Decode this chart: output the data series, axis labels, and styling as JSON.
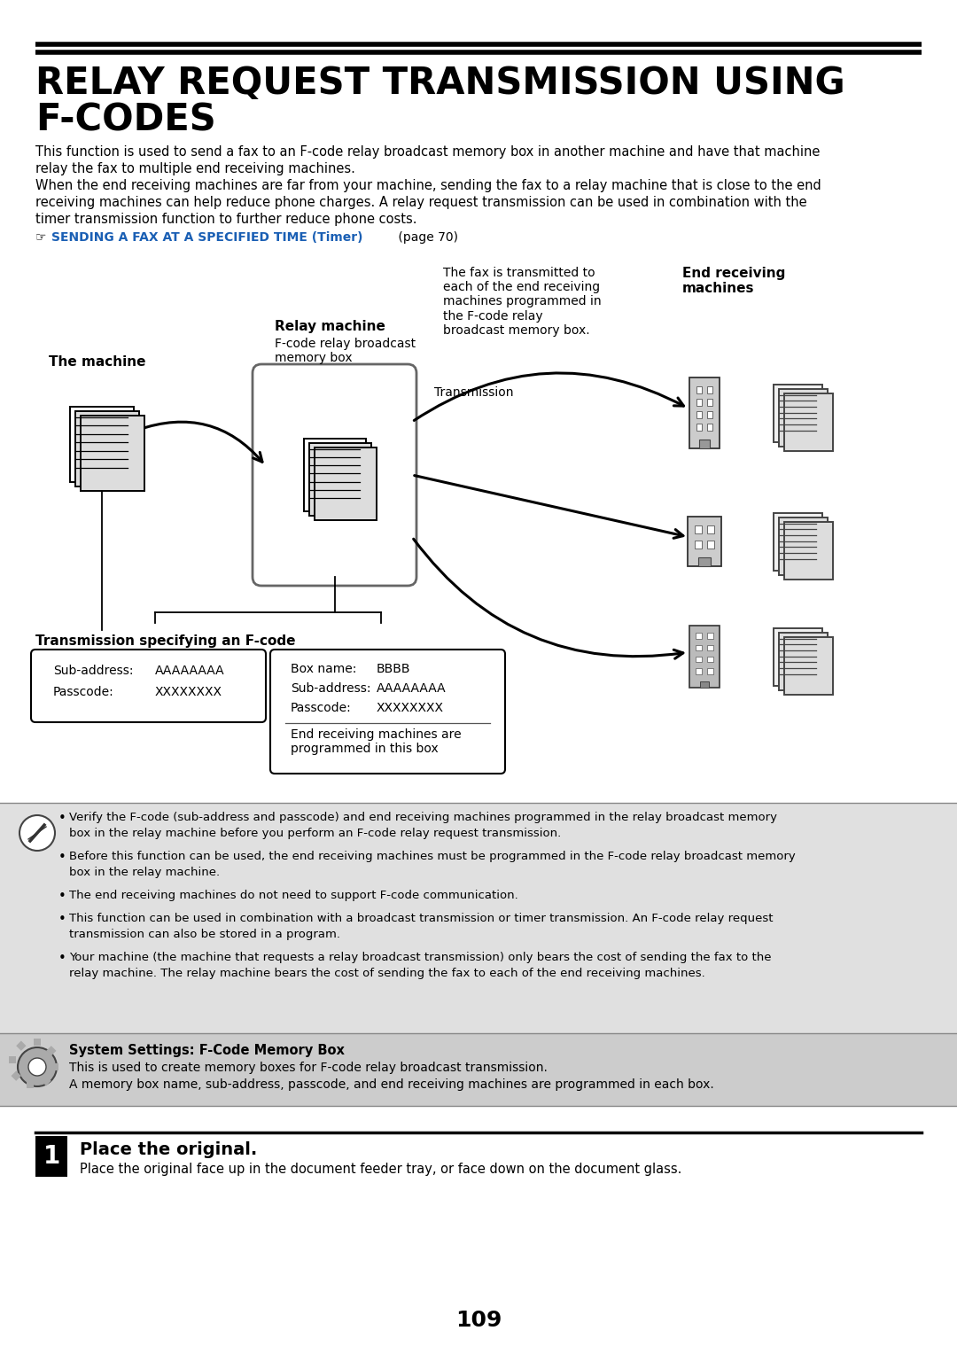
{
  "title_line1": "RELAY REQUEST TRANSMISSION USING",
  "title_line2": "F-CODES",
  "intro_text_lines": [
    "This function is used to send a fax to an F-code relay broadcast memory box in another machine and have that machine",
    "relay the fax to multiple end receiving machines.",
    "When the end receiving machines are far from your machine, sending the fax to a relay machine that is close to the end",
    "receiving machines can help reduce phone charges. A relay request transmission can be used in combination with the",
    "timer transmission function to further reduce phone costs."
  ],
  "link_icon": "☞¯",
  "link_text": "SENDING A FAX AT A SPECIFIED TIME (Timer)",
  "link_suffix": " (page 70)",
  "fax_note": "The fax is transmitted to\neach of the end receiving\nmachines programmed in\nthe F-code relay\nbroadcast memory box.",
  "end_receiving_label": "End receiving\nmachines",
  "relay_machine_label": "Relay machine",
  "relay_machine_sub": "F-code relay broadcast\nmemory box",
  "the_machine_label": "The machine",
  "transmission_label": "Transmission",
  "transmission_specifying": "Transmission specifying an F-code",
  "box1_line1a": "Sub-address:",
  "box1_line1b": "AAAAAAAA",
  "box1_line2a": "Passcode:",
  "box1_line2b": "XXXXXXXX",
  "box2_line1a": "Box name:",
  "box2_line1b": "BBBB",
  "box2_line2a": "Sub-address:",
  "box2_line2b": "AAAAAAAA",
  "box2_line3a": "Passcode:",
  "box2_line3b": "XXXXXXXX",
  "box2_note": "End receiving machines are\nprogrammed in this box",
  "note_bullets": [
    "Verify the F-code (sub-address and passcode) and end receiving machines programmed in the relay broadcast memory\nbox in the relay machine before you perform an F-code relay request transmission.",
    "Before this function can be used, the end receiving machines must be programmed in the F-code relay broadcast memory\nbox in the relay machine.",
    "The end receiving machines do not need to support F-code communication.",
    "This function can be used in combination with a broadcast transmission or timer transmission. An F-code relay request\ntransmission can also be stored in a program.",
    "Your machine (the machine that requests a relay broadcast transmission) only bears the cost of sending the fax to the\nrelay machine. The relay machine bears the cost of sending the fax to each of the end receiving machines."
  ],
  "sys_title": "System Settings: F-Code Memory Box",
  "sys_text_lines": [
    "This is used to create memory boxes for F-code relay broadcast transmission.",
    "A memory box name, sub-address, passcode, and end receiving machines are programmed in each box."
  ],
  "step_num": "1",
  "step_title": "Place the original.",
  "step_text": "Place the original face up in the document feeder tray, or face down on the document glass.",
  "page_num": "109",
  "bg": "#ffffff",
  "link_color": "#1a5fb4",
  "note_bg": "#e0e0e0",
  "sys_bg": "#cccccc",
  "border_color": "#222222"
}
